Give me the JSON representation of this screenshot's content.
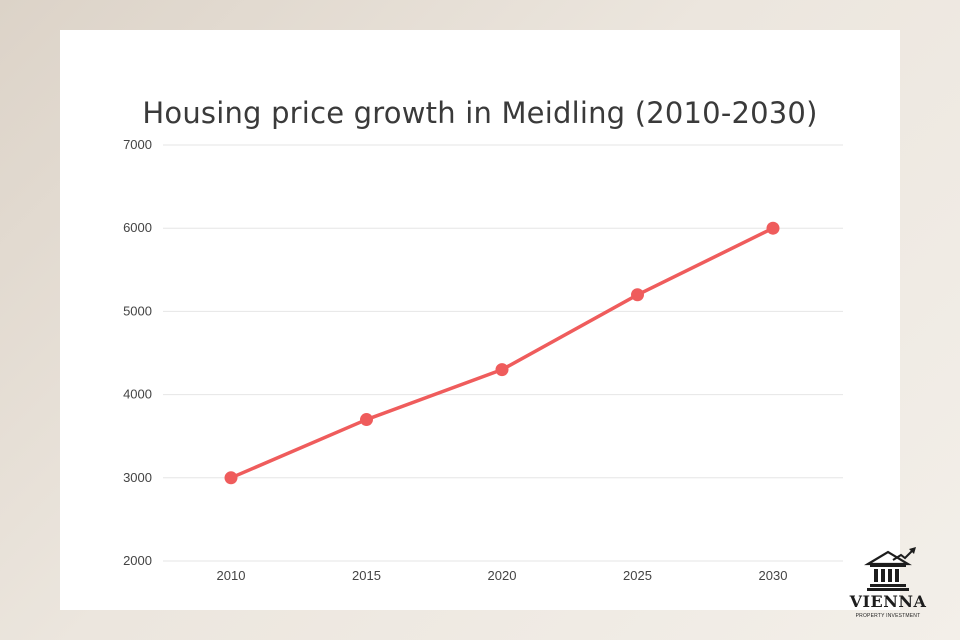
{
  "chart_data": {
    "type": "line",
    "title": "Housing price growth in Meidling (2010-2030)",
    "xlabel": "",
    "ylabel": "",
    "categories": [
      "2010",
      "2015",
      "2020",
      "2025",
      "2030"
    ],
    "series": [
      {
        "name": "Housing price",
        "values": [
          3000,
          3700,
          4300,
          5200,
          6000
        ],
        "color": "#ef5c5c"
      }
    ],
    "ylim": [
      2000,
      7000
    ],
    "yticks": [
      2000,
      3000,
      4000,
      5000,
      6000,
      7000
    ],
    "grid": true
  },
  "logo": {
    "name": "VIENNA",
    "tagline": "PROPERTY INVESTMENT"
  },
  "colors": {
    "line": "#ef5c5c",
    "grid": "#e6e6e6",
    "text": "#3a3a3a"
  }
}
